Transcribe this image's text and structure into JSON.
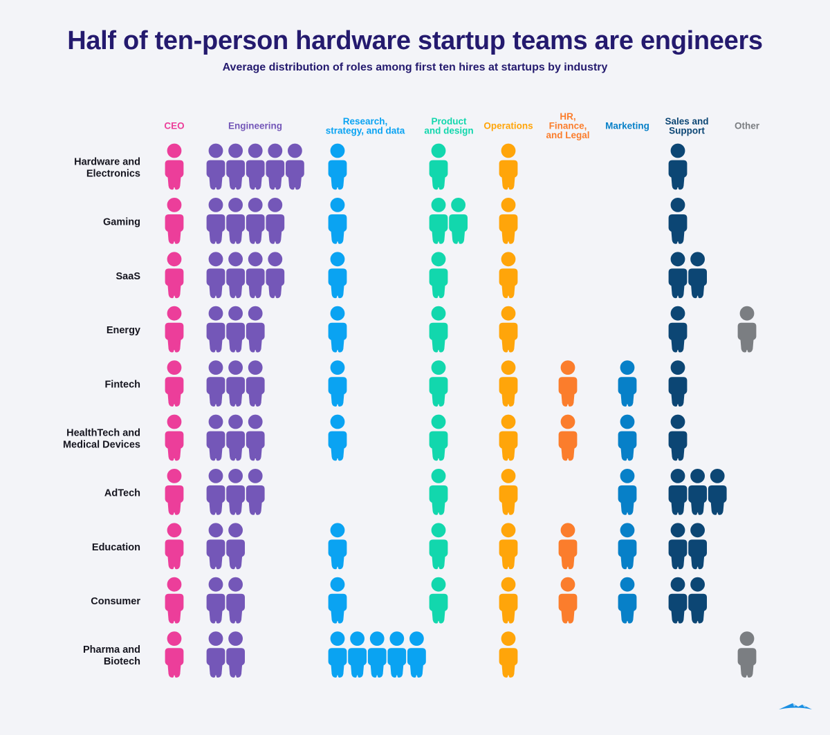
{
  "title": "Half of ten-person hardware startup teams are engineers",
  "subtitle": "Average distribution of roles among first ten hires at startups by industry",
  "chart_data": {
    "type": "pictogram",
    "title": "Half of ten-person hardware startup teams are engineers",
    "subtitle": "Average distribution of roles among first ten hires at startups by industry",
    "unit": "people (of first ten hires)",
    "roles": [
      {
        "key": "ceo",
        "label": [
          "CEO"
        ],
        "color": "#ec3e9a"
      },
      {
        "key": "engineering",
        "label": [
          "Engineering"
        ],
        "color": "#7457b8"
      },
      {
        "key": "research",
        "label": [
          "Research,",
          "strategy, and data"
        ],
        "color": "#0aa3f2"
      },
      {
        "key": "product",
        "label": [
          "Product",
          "and design"
        ],
        "color": "#12d7ad"
      },
      {
        "key": "operations",
        "label": [
          "Operations"
        ],
        "color": "#ffa50a"
      },
      {
        "key": "hr",
        "label": [
          "HR,",
          "Finance,",
          "and Legal"
        ],
        "color": "#fb7d2c"
      },
      {
        "key": "marketing",
        "label": [
          "Marketing"
        ],
        "color": "#0780c8"
      },
      {
        "key": "sales",
        "label": [
          "Sales and",
          "Support"
        ],
        "color": "#0c4674"
      },
      {
        "key": "other",
        "label": [
          "Other"
        ],
        "color": "#7b7e82"
      }
    ],
    "industries": [
      {
        "label": [
          "Hardware and",
          "Electronics"
        ],
        "values": [
          1,
          5,
          1,
          1,
          1,
          0,
          0,
          1,
          0
        ]
      },
      {
        "label": [
          "Gaming"
        ],
        "values": [
          1,
          4,
          1,
          2,
          1,
          0,
          0,
          1,
          0
        ]
      },
      {
        "label": [
          "SaaS"
        ],
        "values": [
          1,
          4,
          1,
          1,
          1,
          0,
          0,
          2,
          0
        ]
      },
      {
        "label": [
          "Energy"
        ],
        "values": [
          1,
          3,
          1,
          1,
          1,
          0,
          0,
          1,
          1
        ]
      },
      {
        "label": [
          "Fintech"
        ],
        "values": [
          1,
          3,
          1,
          1,
          1,
          1,
          1,
          1,
          0
        ]
      },
      {
        "label": [
          "HealthTech and",
          "Medical Devices"
        ],
        "values": [
          1,
          3,
          1,
          1,
          1,
          1,
          1,
          1,
          0
        ]
      },
      {
        "label": [
          "AdTech"
        ],
        "values": [
          1,
          3,
          0,
          1,
          1,
          0,
          1,
          3,
          0
        ]
      },
      {
        "label": [
          "Education"
        ],
        "values": [
          1,
          2,
          1,
          1,
          1,
          1,
          1,
          2,
          0
        ]
      },
      {
        "label": [
          "Consumer"
        ],
        "values": [
          1,
          2,
          1,
          1,
          1,
          1,
          1,
          2,
          0
        ]
      },
      {
        "label": [
          "Pharma and",
          "Biotech"
        ],
        "values": [
          1,
          2,
          5,
          0,
          1,
          0,
          0,
          0,
          1
        ]
      }
    ]
  },
  "logo": {
    "icon": "mountain-logo-icon",
    "color": "#1a8fe3"
  }
}
